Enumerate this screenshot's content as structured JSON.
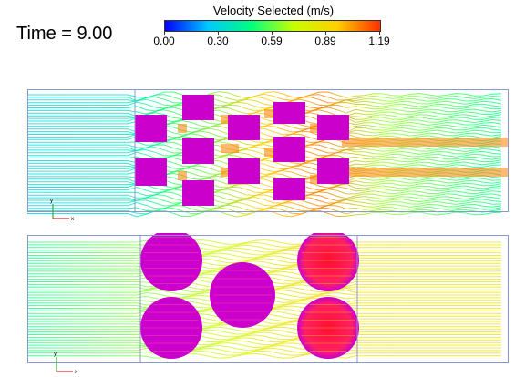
{
  "time": {
    "label": "Time = 9.00"
  },
  "legend": {
    "title": "Velocity Selected (m/s)",
    "ticks": [
      "0.00",
      "0.30",
      "0.59",
      "0.89",
      "1.19"
    ],
    "min": 0.0,
    "max": 1.19,
    "colormap": [
      "#0000ff",
      "#00c8ff",
      "#00ff80",
      "#c8ff00",
      "#ffd000",
      "#ff3000"
    ]
  },
  "colors": {
    "obstacle": "#cc00cc",
    "boundary": "#8899cc",
    "axis_y": "#33aa33",
    "axis_x": "#cc3333"
  },
  "axes": {
    "y_label": "y",
    "x_label": "x"
  }
}
